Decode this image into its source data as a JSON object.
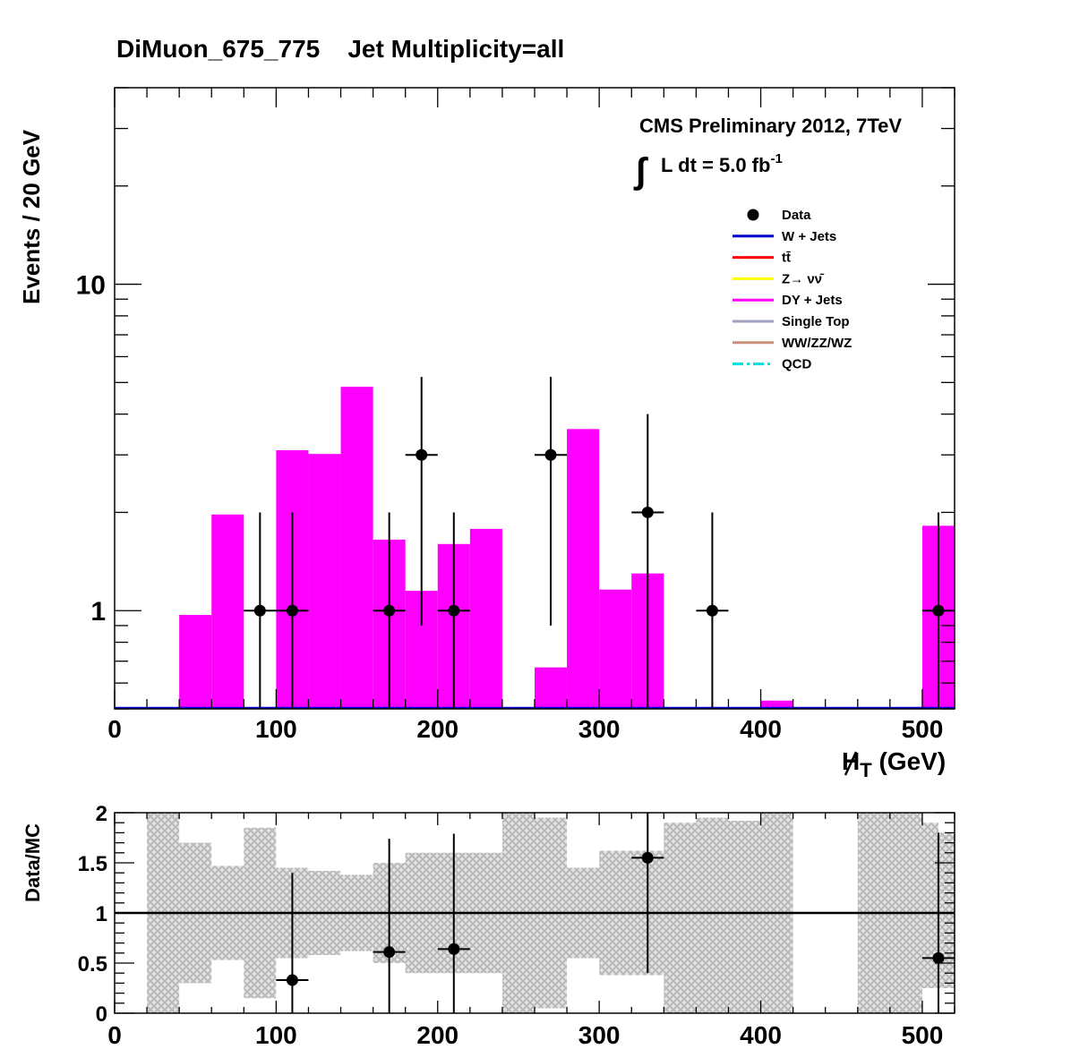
{
  "chart_data": [
    {
      "type": "bar",
      "title": "DiMuon_675_775    Jet Multiplicity=all",
      "ylabel": "Events / 20 GeV",
      "xlabel_main": "H",
      "xlabel_sub": "T",
      "xlabel_unit": " (GeV)",
      "xlim": [
        0,
        520
      ],
      "ylim": [
        0.5,
        40
      ],
      "yscale": "log",
      "x_ticks": [
        "0",
        "100",
        "200",
        "300",
        "400",
        "500"
      ],
      "y_tick_labels": [
        "1",
        "10"
      ],
      "annotation_line1": "CMS Preliminary 2012, 7TeV",
      "annotation_int": "∫",
      "annotation_lumi": "L dt = 5.0 fb",
      "annotation_lumi_exp": "-1",
      "legend": [
        {
          "label": "Data",
          "style": "marker",
          "color": "#000000"
        },
        {
          "label": "W + Jets",
          "style": "line",
          "color": "#0000cc"
        },
        {
          "label": "tt̄",
          "style": "line",
          "color": "#ff0000"
        },
        {
          "label": "Z→ νν̄",
          "style": "line",
          "color": "#ffff00"
        },
        {
          "label": "DY + Jets",
          "style": "line",
          "color": "#ff00ff"
        },
        {
          "label": "Single Top",
          "style": "line",
          "color": "#a0a0c0"
        },
        {
          "label": "WW/ZZ/WZ",
          "style": "line",
          "color": "#c8907a"
        },
        {
          "label": "QCD",
          "style": "dash",
          "color": "#00e0e0"
        }
      ],
      "dy_bins": [
        {
          "lo": 40,
          "hi": 60,
          "value": 0.97
        },
        {
          "lo": 60,
          "hi": 80,
          "value": 1.97
        },
        {
          "lo": 100,
          "hi": 120,
          "value": 3.1
        },
        {
          "lo": 120,
          "hi": 140,
          "value": 3.02
        },
        {
          "lo": 140,
          "hi": 160,
          "value": 4.85
        },
        {
          "lo": 160,
          "hi": 180,
          "value": 1.65
        },
        {
          "lo": 180,
          "hi": 200,
          "value": 1.15
        },
        {
          "lo": 200,
          "hi": 220,
          "value": 1.6
        },
        {
          "lo": 220,
          "hi": 240,
          "value": 1.78
        },
        {
          "lo": 260,
          "hi": 280,
          "value": 0.67
        },
        {
          "lo": 280,
          "hi": 300,
          "value": 3.6
        },
        {
          "lo": 300,
          "hi": 320,
          "value": 1.16
        },
        {
          "lo": 320,
          "hi": 340,
          "value": 1.3
        },
        {
          "lo": 400,
          "hi": 420,
          "value": 0.53
        },
        {
          "lo": 500,
          "hi": 520,
          "value": 1.82
        }
      ],
      "data_points": [
        {
          "x": 90,
          "y": 1,
          "yerr_lo": 1,
          "yerr_hi": 1
        },
        {
          "x": 110,
          "y": 1,
          "yerr_lo": 1,
          "yerr_hi": 1
        },
        {
          "x": 170,
          "y": 1,
          "yerr_lo": 1,
          "yerr_hi": 1
        },
        {
          "x": 190,
          "y": 3,
          "yerr_lo": 2.1,
          "yerr_hi": 2.2
        },
        {
          "x": 210,
          "y": 1,
          "yerr_lo": 1,
          "yerr_hi": 1
        },
        {
          "x": 270,
          "y": 3,
          "yerr_lo": 2.1,
          "yerr_hi": 2.2
        },
        {
          "x": 330,
          "y": 2,
          "yerr_lo": 2,
          "yerr_hi": 2
        },
        {
          "x": 370,
          "y": 1,
          "yerr_lo": 1,
          "yerr_hi": 1
        },
        {
          "x": 510,
          "y": 1,
          "yerr_lo": 1,
          "yerr_hi": 1
        }
      ]
    },
    {
      "type": "scatter",
      "ylabel": "Data/MC",
      "xlim": [
        0,
        520
      ],
      "ylim": [
        0,
        2
      ],
      "x_ticks": [
        "0",
        "100",
        "200",
        "300",
        "400",
        "500"
      ],
      "y_ticks": [
        "0",
        "0.5",
        "1",
        "1.5",
        "2"
      ],
      "reference_line": 1,
      "uncertainty_band": [
        {
          "lo": 20,
          "hi": 40,
          "min": 0,
          "max": 2
        },
        {
          "lo": 40,
          "hi": 60,
          "min": 0.3,
          "max": 1.7
        },
        {
          "lo": 60,
          "hi": 80,
          "min": 0.53,
          "max": 1.47
        },
        {
          "lo": 80,
          "hi": 100,
          "min": 0.15,
          "max": 1.85
        },
        {
          "lo": 100,
          "hi": 120,
          "min": 0.55,
          "max": 1.45
        },
        {
          "lo": 120,
          "hi": 140,
          "min": 0.58,
          "max": 1.42
        },
        {
          "lo": 140,
          "hi": 160,
          "min": 0.62,
          "max": 1.38
        },
        {
          "lo": 160,
          "hi": 180,
          "min": 0.5,
          "max": 1.5
        },
        {
          "lo": 180,
          "hi": 240,
          "min": 0.4,
          "max": 1.6
        },
        {
          "lo": 240,
          "hi": 260,
          "min": 0,
          "max": 2
        },
        {
          "lo": 260,
          "hi": 280,
          "min": 0.05,
          "max": 1.95
        },
        {
          "lo": 280,
          "hi": 300,
          "min": 0.55,
          "max": 1.45
        },
        {
          "lo": 300,
          "hi": 340,
          "min": 0.38,
          "max": 1.62
        },
        {
          "lo": 340,
          "hi": 360,
          "min": 0,
          "max": 1.9
        },
        {
          "lo": 360,
          "hi": 380,
          "min": 0,
          "max": 1.95
        },
        {
          "lo": 380,
          "hi": 400,
          "min": 0,
          "max": 1.92
        },
        {
          "lo": 400,
          "hi": 420,
          "min": 0,
          "max": 2
        },
        {
          "lo": 460,
          "hi": 500,
          "min": 0,
          "max": 2
        },
        {
          "lo": 500,
          "hi": 510,
          "min": 0.25,
          "max": 1.9
        },
        {
          "lo": 510,
          "hi": 520,
          "min": 0.25,
          "max": 1.8
        }
      ],
      "points": [
        {
          "x": 110,
          "y": 0.33,
          "yerr_lo": 0.33,
          "yerr_hi": 1.07
        },
        {
          "x": 170,
          "y": 0.61,
          "yerr_lo": 0.61,
          "yerr_hi": 1.13
        },
        {
          "x": 210,
          "y": 0.64,
          "yerr_lo": 0.64,
          "yerr_hi": 1.15
        },
        {
          "x": 330,
          "y": 1.55,
          "yerr_lo": 1.15,
          "yerr_hi": 0.6
        },
        {
          "x": 510,
          "y": 0.55,
          "yerr_lo": 0.55,
          "yerr_hi": 1.25
        }
      ]
    }
  ]
}
